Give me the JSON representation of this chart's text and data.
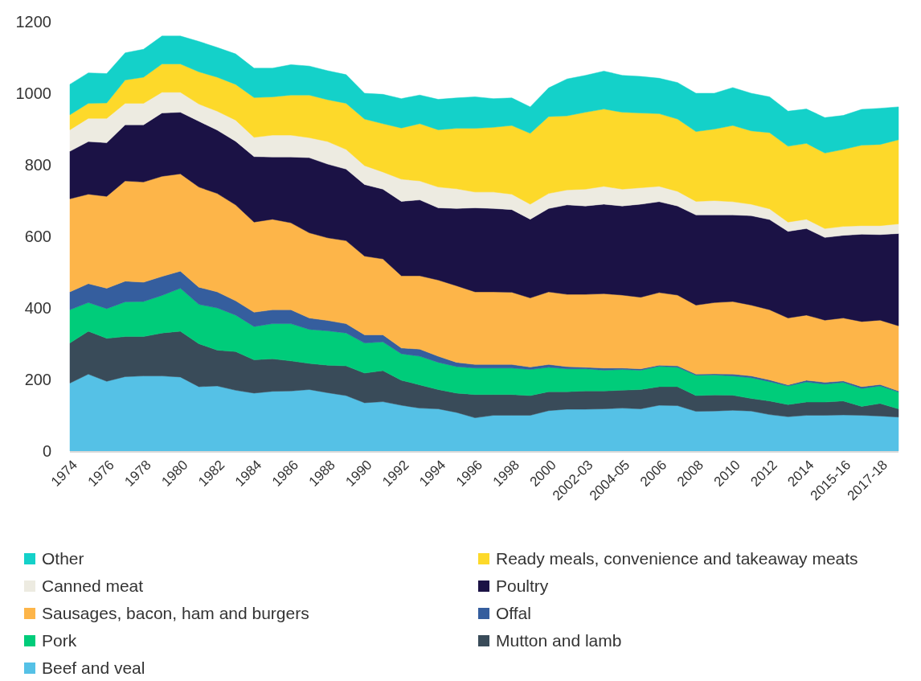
{
  "chart_data": {
    "type": "area",
    "stacked": true,
    "categories": [
      "1974",
      null,
      "1976",
      null,
      "1978",
      null,
      "1980",
      null,
      "1982",
      null,
      "1984",
      null,
      "1986",
      null,
      "1988",
      null,
      "1990",
      null,
      "1992",
      null,
      "1994",
      null,
      "1996",
      null,
      "1998",
      null,
      "2000",
      null,
      "2002-03",
      null,
      "2004-05",
      null,
      "2006",
      null,
      "2008",
      null,
      "2010",
      null,
      "2012",
      null,
      "2014",
      null,
      "2015-16",
      null,
      "2017-18",
      null
    ],
    "ylim": [
      0,
      1200
    ],
    "yticks": [
      0,
      200,
      400,
      600,
      800,
      1000,
      1200
    ],
    "grid": false,
    "legend": "bottom",
    "series": [
      {
        "name": "Beef and veal",
        "color": "#55c1e6",
        "values": [
          190,
          215,
          195,
          208,
          210,
          210,
          207,
          180,
          182,
          170,
          162,
          167,
          168,
          172,
          163,
          155,
          135,
          138,
          128,
          120,
          118,
          108,
          93,
          100,
          100,
          100,
          113,
          117,
          117,
          118,
          120,
          118,
          128,
          127,
          111,
          112,
          114,
          112,
          102,
          96,
          100,
          100,
          101,
          100,
          98,
          95
        ]
      },
      {
        "name": "Mutton and lamb",
        "color": "#394b59",
        "values": [
          112,
          120,
          120,
          112,
          110,
          120,
          128,
          120,
          100,
          108,
          93,
          91,
          84,
          73,
          77,
          83,
          83,
          87,
          70,
          65,
          54,
          54,
          65,
          58,
          58,
          55,
          53,
          49,
          51,
          50,
          50,
          54,
          52,
          53,
          44,
          45,
          42,
          35,
          38,
          34,
          37,
          37,
          39,
          25,
          35,
          23
        ]
      },
      {
        "name": "Pork",
        "color": "#00cc7a",
        "values": [
          93,
          80,
          83,
          97,
          98,
          105,
          120,
          110,
          118,
          102,
          93,
          98,
          104,
          95,
          96,
          92,
          84,
          80,
          74,
          80,
          76,
          74,
          74,
          74,
          74,
          73,
          68,
          64,
          62,
          58,
          58,
          54,
          57,
          54,
          57,
          56,
          54,
          58,
          54,
          52,
          56,
          50,
          52,
          50,
          49,
          47
        ]
      },
      {
        "name": "Offal",
        "color": "#355e9e",
        "values": [
          50,
          53,
          57,
          58,
          54,
          53,
          48,
          48,
          45,
          40,
          40,
          39,
          39,
          32,
          29,
          26,
          23,
          20,
          16,
          20,
          17,
          12,
          10,
          10,
          10,
          7,
          8,
          6,
          4,
          6,
          4,
          4,
          3,
          4,
          3,
          3,
          5,
          5,
          5,
          3,
          5,
          5,
          4,
          5,
          4,
          3
        ]
      },
      {
        "name": "Sausages, bacon, ham and burgers",
        "color": "#fdb549",
        "values": [
          260,
          250,
          257,
          280,
          280,
          280,
          272,
          280,
          275,
          268,
          252,
          253,
          243,
          238,
          231,
          232,
          220,
          212,
          202,
          205,
          213,
          214,
          203,
          203,
          202,
          193,
          203,
          202,
          204,
          208,
          204,
          200,
          203,
          198,
          193,
          199,
          203,
          198,
          196,
          187,
          182,
          174,
          176,
          182,
          180,
          182
        ]
      },
      {
        "name": "Poultry",
        "color": "#1b1245",
        "values": [
          133,
          147,
          150,
          157,
          160,
          177,
          172,
          184,
          177,
          178,
          183,
          174,
          184,
          210,
          206,
          200,
          200,
          195,
          208,
          212,
          202,
          216,
          235,
          233,
          231,
          220,
          233,
          250,
          247,
          250,
          249,
          260,
          254,
          249,
          252,
          245,
          242,
          250,
          252,
          242,
          242,
          231,
          231,
          244,
          239,
          258
        ]
      },
      {
        "name": "Canned meat",
        "color": "#edebe1",
        "values": [
          60,
          65,
          68,
          60,
          60,
          58,
          56,
          48,
          53,
          59,
          54,
          61,
          61,
          56,
          63,
          55,
          53,
          48,
          62,
          53,
          58,
          55,
          44,
          46,
          43,
          42,
          42,
          42,
          47,
          50,
          47,
          46,
          43,
          41,
          38,
          40,
          37,
          32,
          30,
          26,
          26,
          25,
          25,
          24,
          25,
          27
        ]
      },
      {
        "name": "Ready meals, convenience and takeaway meats",
        "color": "#fdd92a",
        "values": [
          42,
          42,
          43,
          65,
          73,
          79,
          79,
          90,
          95,
          100,
          111,
          107,
          112,
          119,
          117,
          129,
          130,
          135,
          143,
          160,
          160,
          169,
          178,
          181,
          192,
          198,
          215,
          207,
          215,
          216,
          215,
          209,
          203,
          202,
          195,
          200,
          213,
          205,
          213,
          212,
          212,
          211,
          215,
          225,
          227,
          235
        ]
      },
      {
        "name": "Other",
        "color": "#14d1c9",
        "values": [
          85,
          85,
          82,
          76,
          78,
          78,
          78,
          85,
          83,
          85,
          82,
          80,
          85,
          81,
          81,
          80,
          72,
          82,
          82,
          80,
          85,
          85,
          88,
          80,
          77,
          74,
          80,
          103,
          103,
          106,
          103,
          102,
          99,
          102,
          107,
          100,
          106,
          105,
          100,
          98,
          96,
          99,
          95,
          100,
          101,
          92
        ]
      }
    ]
  }
}
